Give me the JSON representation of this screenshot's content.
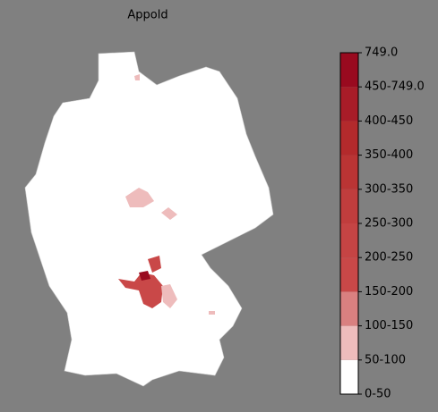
{
  "title": "Appold",
  "legend": {
    "labels": [
      "0-50",
      "50-100",
      "100-150",
      "150-200",
      "200-250",
      "250-300",
      "300-350",
      "350-400",
      "400-450",
      "450-749.0",
      "749.0"
    ],
    "colors": [
      "#ffffff",
      "#eebcbc",
      "#d98080",
      "#c94848",
      "#c54444",
      "#c03d3d",
      "#ba3434",
      "#b32a2c",
      "#a81c28",
      "#990a1f"
    ]
  }
}
